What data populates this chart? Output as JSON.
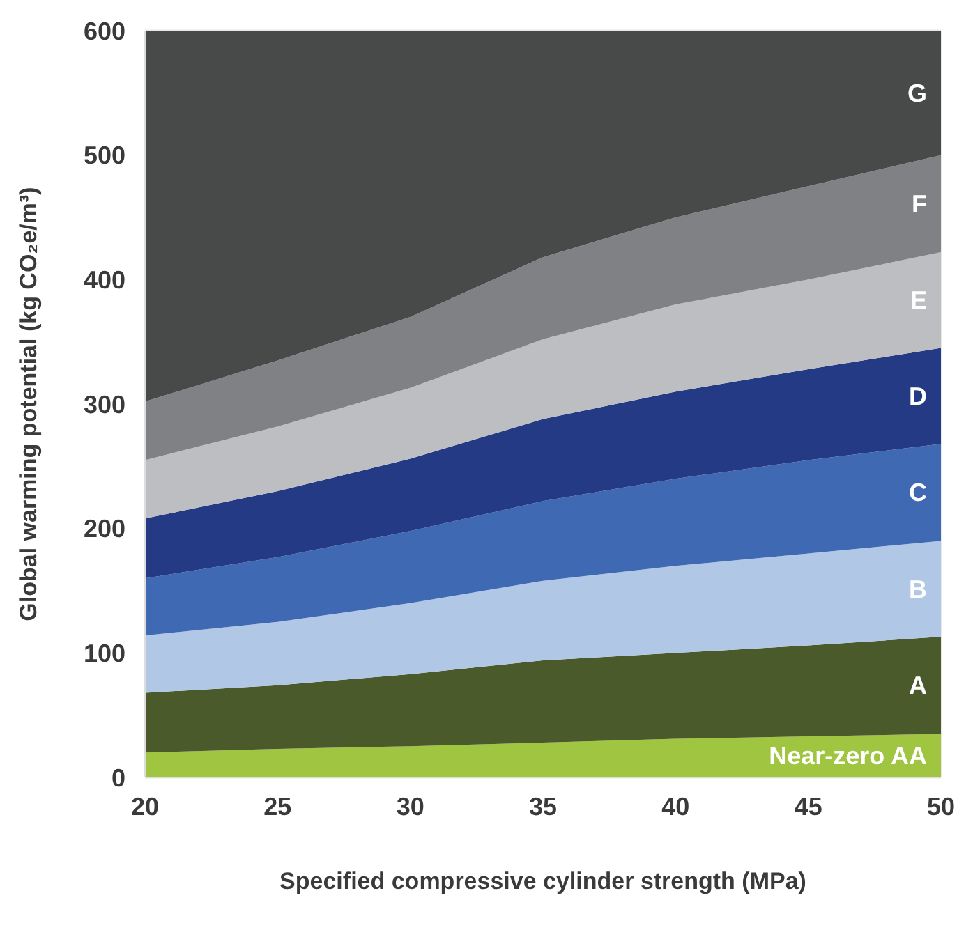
{
  "chart_data": {
    "type": "area",
    "stacked": true,
    "xlabel": "Specified compressive cylinder strength (MPa)",
    "ylabel": "Global warming potential (kg CO₂e/m³)",
    "x": [
      20,
      25,
      30,
      35,
      40,
      45,
      50
    ],
    "xlim": [
      20,
      50
    ],
    "xticks": [
      20,
      25,
      30,
      35,
      40,
      45,
      50
    ],
    "ylim": [
      0,
      600
    ],
    "yticks": [
      0,
      100,
      200,
      300,
      400,
      500,
      600
    ],
    "grid": true,
    "legend": false,
    "series": [
      {
        "name": "Near-zero  AA",
        "color": "#a0c540",
        "values": [
          20,
          23,
          25,
          28,
          31,
          33,
          35
        ]
      },
      {
        "name": "A",
        "color": "#4b5a2a",
        "values": [
          48,
          51,
          58,
          66,
          69,
          73,
          78
        ]
      },
      {
        "name": "B",
        "color": "#b0c7e6",
        "values": [
          46,
          51,
          57,
          64,
          70,
          74,
          77
        ]
      },
      {
        "name": "C",
        "color": "#3f6ab3",
        "values": [
          46,
          52,
          58,
          64,
          70,
          75,
          78
        ]
      },
      {
        "name": "D",
        "color": "#253a85",
        "values": [
          48,
          53,
          58,
          66,
          70,
          73,
          77
        ]
      },
      {
        "name": "E",
        "color": "#bcbec2",
        "values": [
          47,
          52,
          57,
          64,
          70,
          72,
          77
        ]
      },
      {
        "name": "F",
        "color": "#808185",
        "values": [
          47,
          53,
          57,
          66,
          70,
          75,
          78
        ]
      },
      {
        "name": "G",
        "color": "#484a4a",
        "values": [
          298,
          265,
          230,
          182,
          150,
          125,
          100
        ]
      }
    ]
  }
}
